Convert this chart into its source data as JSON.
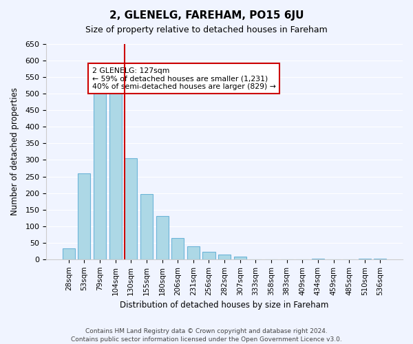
{
  "title": "2, GLENELG, FAREHAM, PO15 6JU",
  "subtitle": "Size of property relative to detached houses in Fareham",
  "xlabel": "Distribution of detached houses by size in Fareham",
  "ylabel": "Number of detached properties",
  "footnote1": "Contains HM Land Registry data © Crown copyright and database right 2024.",
  "footnote2": "Contains public sector information licensed under the Open Government Licence v3.0.",
  "bar_labels": [
    "28sqm",
    "53sqm",
    "79sqm",
    "104sqm",
    "130sqm",
    "155sqm",
    "180sqm",
    "206sqm",
    "231sqm",
    "256sqm",
    "282sqm",
    "307sqm",
    "333sqm",
    "358sqm",
    "383sqm",
    "409sqm",
    "434sqm",
    "459sqm",
    "485sqm",
    "510sqm",
    "536sqm"
  ],
  "bar_values": [
    32,
    260,
    515,
    515,
    305,
    197,
    130,
    65,
    40,
    23,
    15,
    8,
    0,
    0,
    0,
    0,
    2,
    0,
    0,
    2,
    2
  ],
  "bar_color": "#add8e6",
  "bar_edge_color": "#6cb4d8",
  "highlight_bar_index": 4,
  "highlight_line_color": "#cc0000",
  "ylim": [
    0,
    650
  ],
  "yticks": [
    0,
    50,
    100,
    150,
    200,
    250,
    300,
    350,
    400,
    450,
    500,
    550,
    600,
    650
  ],
  "annotation_title": "2 GLENELG: 127sqm",
  "annotation_line1": "← 59% of detached houses are smaller (1,231)",
  "annotation_line2": "40% of semi-detached houses are larger (829) →",
  "annotation_box_color": "#ffffff",
  "annotation_box_edge_color": "#cc0000",
  "background_color": "#f0f4ff"
}
